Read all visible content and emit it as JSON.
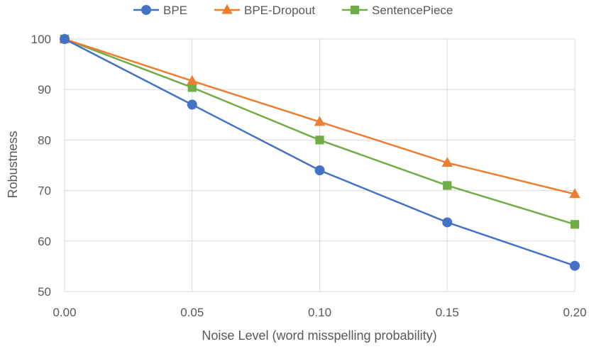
{
  "chart_data": {
    "type": "line",
    "title": "",
    "xlabel": "Noise Level (word misspelling probability)",
    "ylabel": "Robustness",
    "x": [
      0.0,
      0.05,
      0.1,
      0.15,
      0.2
    ],
    "x_tick_labels": [
      "0.00",
      "0.05",
      "0.10",
      "0.15",
      "0.20"
    ],
    "xlim": [
      0.0,
      0.2
    ],
    "ylim": [
      50,
      100
    ],
    "y_ticks": [
      50,
      60,
      70,
      80,
      90,
      100
    ],
    "grid": "vertical and horizontal",
    "legend_position": "top",
    "series": [
      {
        "name": "BPE",
        "values": [
          100,
          87.0,
          74.0,
          63.7,
          55.1
        ],
        "color": "#4472C4",
        "marker": "circle"
      },
      {
        "name": "BPE-Dropout",
        "values": [
          100,
          91.7,
          83.6,
          75.5,
          69.3
        ],
        "color": "#ED7D31",
        "marker": "triangle"
      },
      {
        "name": "SentencePiece",
        "values": [
          100,
          90.4,
          80.0,
          71.0,
          63.3
        ],
        "color": "#70AD47",
        "marker": "square"
      }
    ]
  }
}
